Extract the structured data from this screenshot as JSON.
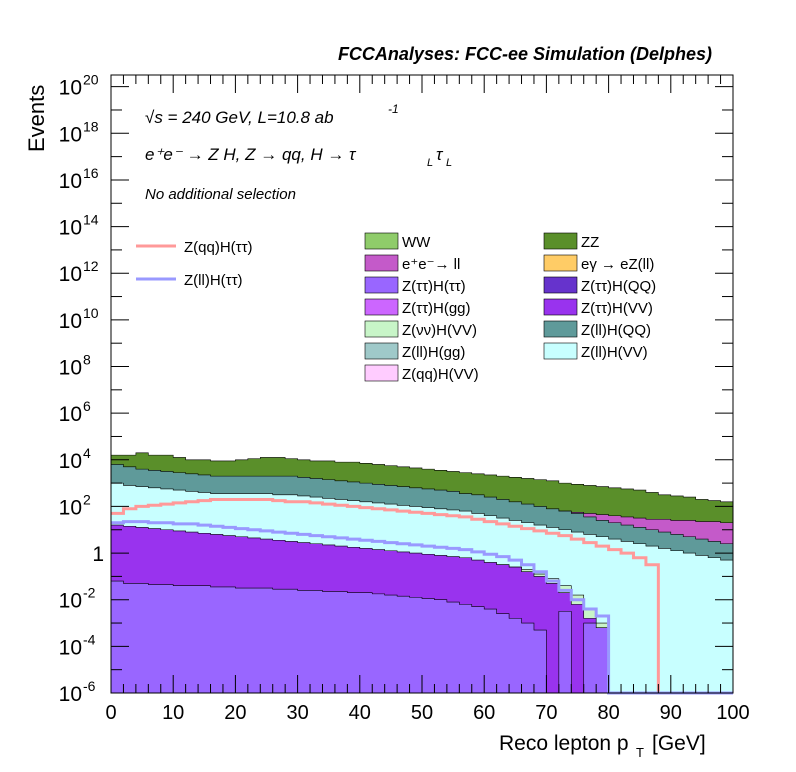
{
  "chart_data": {
    "type": "area",
    "stacked": true,
    "title": "FCCAnalyses: FCC-ee Simulation (Delphes)",
    "annotations": [
      "√s = 240 GeV, L=10.8 ab",
      "-1",
      "e⁺e⁻ → Z H, Z → qq, H → τ",
      "L",
      "τ",
      "L",
      "No additional selection"
    ],
    "xlabel": "Reco lepton p",
    "xlabel_sub": "T",
    "xlabel_unit": "[GeV]",
    "ylabel": "Events",
    "xlim": [
      0,
      100
    ],
    "ylim_log10": [
      -6,
      20.5
    ],
    "y_scale": "log",
    "x_ticks": [
      "0",
      "10",
      "20",
      "30",
      "40",
      "50",
      "60",
      "70",
      "80",
      "90",
      "100"
    ],
    "y_ticks": [
      {
        "base": "10",
        "exp": "20",
        "v": 20
      },
      {
        "base": "10",
        "exp": "18",
        "v": 18
      },
      {
        "base": "10",
        "exp": "16",
        "v": 16
      },
      {
        "base": "10",
        "exp": "14",
        "v": 14
      },
      {
        "base": "10",
        "exp": "12",
        "v": 12
      },
      {
        "base": "10",
        "exp": "10",
        "v": 10
      },
      {
        "base": "10",
        "exp": "8",
        "v": 8
      },
      {
        "base": "10",
        "exp": "6",
        "v": 6
      },
      {
        "base": "10",
        "exp": "4",
        "v": 4
      },
      {
        "base": "10",
        "exp": "2",
        "v": 2
      },
      {
        "base": "1",
        "exp": "",
        "v": 0
      },
      {
        "base": "10",
        "exp": "-2",
        "v": -2
      },
      {
        "base": "10",
        "exp": "-4",
        "v": -4
      },
      {
        "base": "10",
        "exp": "-6",
        "v": -6
      }
    ],
    "bin_edges_step": 2,
    "stacked_log10_top": [
      {
        "name": "ZZ",
        "color": "#5a8f2a",
        "log10_top": [
          4.2,
          4.2,
          4.3,
          4.2,
          4.2,
          4.1,
          4.0,
          4.0,
          3.95,
          3.95,
          4.0,
          4.05,
          4.1,
          4.1,
          4.05,
          4.0,
          3.95,
          3.95,
          3.9,
          3.9,
          3.85,
          3.8,
          3.75,
          3.7,
          3.65,
          3.6,
          3.55,
          3.5,
          3.45,
          3.4,
          3.35,
          3.3,
          3.25,
          3.2,
          3.15,
          3.1,
          3.0,
          2.95,
          2.9,
          2.85,
          2.8,
          2.75,
          2.7,
          2.6,
          2.5,
          2.45,
          2.4,
          2.3,
          2.25,
          2.2
        ]
      },
      {
        "name": "WW",
        "color": "#8fcc6a",
        "log10_top": [
          3.6,
          3.5,
          3.5,
          3.45,
          3.4,
          3.35,
          3.3,
          3.25,
          3.2,
          3.2,
          3.15,
          3.1,
          3.1,
          3.05,
          3.0,
          3.0,
          2.95,
          2.9,
          2.85,
          2.8,
          2.75,
          2.7,
          2.65,
          2.6,
          2.5,
          2.45,
          2.4,
          2.3,
          2.2,
          2.1,
          2.0,
          1.9,
          1.75,
          1.6,
          1.5,
          1.4,
          1.3,
          1.2,
          1.1,
          1.0,
          0.95,
          0.9,
          0.9,
          0.85,
          0.8,
          0.8,
          0.75,
          0.7,
          0.7,
          0.7
        ]
      },
      {
        "name": "e⁺e⁻→ ll",
        "color": "#c45ac9",
        "log10_top": [
          3.5,
          3.4,
          3.35,
          3.3,
          3.3,
          3.25,
          3.2,
          3.15,
          3.1,
          3.1,
          3.05,
          3.0,
          3.0,
          2.95,
          2.9,
          2.9,
          2.85,
          2.8,
          2.75,
          2.7,
          2.65,
          2.6,
          2.55,
          2.5,
          2.45,
          2.4,
          2.35,
          2.3,
          2.25,
          2.2,
          2.1,
          2.05,
          2.0,
          1.95,
          1.9,
          1.85,
          1.8,
          1.75,
          1.7,
          1.65,
          1.6,
          1.55,
          1.5,
          1.45,
          1.45,
          1.4,
          1.4,
          1.35,
          1.35,
          1.3
        ]
      },
      {
        "name": "eγ → eZ(ll)",
        "color": "#ffcc66",
        "log10_top": [
          2.0,
          1.8,
          1.7,
          1.65,
          1.6,
          1.55,
          1.5,
          1.45,
          1.4,
          1.35,
          1.3,
          1.25,
          1.2,
          1.15,
          1.1,
          1.05,
          1.0,
          0.95,
          0.9,
          0.85,
          0.8,
          0.75,
          0.7,
          0.65,
          0.6,
          0.55,
          0.5,
          0.45,
          0.4,
          0.35,
          0.3,
          0.25,
          0.2,
          0.15,
          0.1,
          0.05,
          0.0,
          -0.1,
          -0.2,
          -0.3,
          -0.5,
          -0.8,
          -1.2,
          -1.6,
          -2.0,
          -2.5,
          -2.8,
          -3.0,
          -3.2,
          -3.5
        ]
      },
      {
        "name": "Z(ll)H(QQ)",
        "color": "#5f9a9a",
        "log10_top": [
          3.8,
          3.7,
          3.6,
          3.55,
          3.5,
          3.45,
          3.4,
          3.35,
          3.3,
          3.3,
          3.3,
          3.3,
          3.3,
          3.3,
          3.3,
          3.25,
          3.2,
          3.15,
          3.1,
          3.05,
          3.0,
          2.95,
          2.9,
          2.85,
          2.8,
          2.75,
          2.7,
          2.65,
          2.55,
          2.5,
          2.4,
          2.3,
          2.2,
          2.1,
          2.0,
          1.9,
          1.8,
          1.7,
          1.55,
          1.4,
          1.3,
          1.2,
          1.1,
          1.0,
          0.9,
          0.8,
          0.7,
          0.6,
          0.5,
          0.4
        ]
      },
      {
        "name": "Z(ll)H(gg)",
        "color": "#9fc9c9",
        "log10_top": [
          2.3,
          2.25,
          2.2,
          2.2,
          2.15,
          2.1,
          2.1,
          2.05,
          2.0,
          2.0,
          2.0,
          2.0,
          2.0,
          2.0,
          2.0,
          1.95,
          1.9,
          1.85,
          1.8,
          1.75,
          1.7,
          1.65,
          1.6,
          1.55,
          1.5,
          1.45,
          1.4,
          1.35,
          1.3,
          1.2,
          1.1,
          1.0,
          0.9,
          0.8,
          0.7,
          0.6,
          0.5,
          0.4,
          0.3,
          0.2,
          0.1,
          0.0,
          -0.1,
          -0.2,
          -0.3,
          -0.4,
          -0.5,
          -0.6,
          -0.7,
          -0.8
        ]
      },
      {
        "name": "Z(ll)H(VV)",
        "color": "#c8ffff",
        "log10_top": [
          3.0,
          2.9,
          2.85,
          2.8,
          2.75,
          2.7,
          2.65,
          2.6,
          2.55,
          2.55,
          2.55,
          2.55,
          2.55,
          2.5,
          2.5,
          2.45,
          2.4,
          2.35,
          2.3,
          2.25,
          2.2,
          2.15,
          2.1,
          2.05,
          2.0,
          1.95,
          1.9,
          1.85,
          1.8,
          1.7,
          1.6,
          1.5,
          1.4,
          1.3,
          1.2,
          1.1,
          1.0,
          0.9,
          0.8,
          0.7,
          0.6,
          0.5,
          0.4,
          0.3,
          0.2,
          0.1,
          0.0,
          -0.1,
          -0.2,
          -0.3
        ]
      },
      {
        "name": "Z(νν)H(VV)",
        "color": "#c8f5c8",
        "log10_top": [
          1.1,
          1.0,
          0.95,
          0.9,
          0.85,
          0.8,
          0.75,
          0.7,
          0.65,
          0.6,
          0.55,
          0.5,
          0.45,
          0.4,
          0.35,
          0.3,
          0.25,
          0.2,
          0.15,
          0.1,
          0.05,
          0.0,
          -0.05,
          -0.1,
          -0.15,
          -0.2,
          -0.25,
          -0.3,
          -0.35,
          -0.4,
          -0.45,
          -0.5,
          -0.6,
          -0.7,
          -0.9,
          -1.1,
          -1.4,
          -1.8,
          -2.4,
          -3.0,
          -6.0,
          -6.0,
          -6.0,
          -6.0,
          -6.0,
          -6.0,
          -6.0,
          -6.0,
          -6.0,
          -6.0
        ]
      },
      {
        "name": "Z(ττ)H(VV)",
        "color": "#9933ee",
        "log10_top": [
          1.2,
          1.15,
          1.1,
          1.05,
          1.0,
          0.95,
          0.9,
          0.85,
          0.8,
          0.75,
          0.7,
          0.65,
          0.6,
          0.55,
          0.5,
          0.45,
          0.4,
          0.35,
          0.3,
          0.25,
          0.2,
          0.15,
          0.1,
          0.05,
          0.0,
          -0.05,
          -0.1,
          -0.15,
          -0.2,
          -0.3,
          -0.4,
          -0.5,
          -0.6,
          -0.8,
          -1.0,
          -1.3,
          -1.7,
          -2.2,
          -2.8,
          -3.5,
          -6.0,
          -6.0,
          -6.0,
          -6.0,
          -6.0,
          -6.0,
          -6.0,
          -6.0,
          -6.0,
          -6.0
        ]
      },
      {
        "name": "Z(ττ)H(ττ)",
        "color": "#9966ff",
        "log10_top": [
          -1.2,
          -1.3,
          -1.3,
          -1.35,
          -1.35,
          -1.4,
          -1.4,
          -1.4,
          -1.45,
          -1.45,
          -1.5,
          -1.5,
          -1.5,
          -1.55,
          -1.55,
          -1.6,
          -1.6,
          -1.65,
          -1.65,
          -1.7,
          -1.7,
          -1.75,
          -1.8,
          -1.85,
          -1.9,
          -1.95,
          -2.0,
          -2.1,
          -2.2,
          -2.3,
          -2.4,
          -2.6,
          -2.8,
          -3.0,
          -3.3,
          -6.0,
          -2.5,
          -6.0,
          -3.0,
          -3.2,
          -6.0,
          -6.0,
          -6.0,
          -6.0,
          -6.0,
          -6.0,
          -6.0,
          -6.0,
          -6.0,
          -6.0
        ]
      }
    ],
    "overlay_series": [
      {
        "name": "Z(qq)H(ττ)",
        "color": "#ff9999",
        "log10_values": [
          1.7,
          1.9,
          2.0,
          2.05,
          2.1,
          2.15,
          2.2,
          2.25,
          2.3,
          2.3,
          2.3,
          2.3,
          2.3,
          2.25,
          2.2,
          2.2,
          2.15,
          2.1,
          2.05,
          2.0,
          1.95,
          1.9,
          1.85,
          1.8,
          1.75,
          1.7,
          1.65,
          1.6,
          1.55,
          1.45,
          1.35,
          1.25,
          1.15,
          1.05,
          0.95,
          0.85,
          0.75,
          0.6,
          0.45,
          0.3,
          0.15,
          0.0,
          -0.2,
          -0.5,
          -6.0,
          -6.0,
          -6.0,
          -6.0,
          -6.0,
          -6.0
        ]
      },
      {
        "name": "Z(ll)H(ττ)",
        "color": "#9999ff",
        "log10_values": [
          1.3,
          1.35,
          1.35,
          1.3,
          1.3,
          1.25,
          1.25,
          1.2,
          1.15,
          1.1,
          1.05,
          1.0,
          0.95,
          0.9,
          0.85,
          0.8,
          0.75,
          0.7,
          0.65,
          0.6,
          0.55,
          0.5,
          0.45,
          0.4,
          0.35,
          0.3,
          0.25,
          0.2,
          0.15,
          0.05,
          -0.05,
          -0.15,
          -0.3,
          -0.5,
          -0.8,
          -1.2,
          -1.6,
          -2.0,
          -2.4,
          -2.7,
          -6.0,
          -6.0,
          -6.0,
          -6.0,
          -6.0,
          -6.0,
          -6.0,
          -6.0,
          -6.0,
          -6.0
        ]
      }
    ],
    "legend_lines": [
      {
        "name": "Z(qq)H(ττ)",
        "color": "#ff9999"
      },
      {
        "name": "Z(ll)H(ττ)",
        "color": "#9999ff"
      }
    ],
    "legend_boxes": [
      {
        "name": "WW",
        "color": "#8fcc6a"
      },
      {
        "name": "ZZ",
        "color": "#5a8f2a"
      },
      {
        "name": "e⁺e⁻→ ll",
        "color": "#c45ac9"
      },
      {
        "name": "eγ → eZ(ll)",
        "color": "#ffcc66"
      },
      {
        "name": "Z(ττ)H(ττ)",
        "color": "#9966ff"
      },
      {
        "name": "Z(ττ)H(QQ)",
        "color": "#6633cc"
      },
      {
        "name": "Z(ττ)H(gg)",
        "color": "#cc66ff"
      },
      {
        "name": "Z(ττ)H(VV)",
        "color": "#9933ee"
      },
      {
        "name": "Z(νν)H(VV)",
        "color": "#c8f5c8"
      },
      {
        "name": "Z(ll)H(QQ)",
        "color": "#5f9a9a"
      },
      {
        "name": "Z(ll)H(gg)",
        "color": "#9fc9c9"
      },
      {
        "name": "Z(ll)H(VV)",
        "color": "#c8ffff"
      },
      {
        "name": "Z(qq)H(VV)",
        "color": "#ffccff"
      }
    ]
  }
}
